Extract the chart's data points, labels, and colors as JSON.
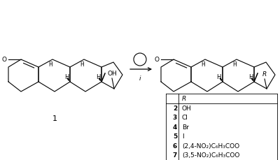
{
  "bg_color": "#ffffff",
  "fig_width": 4.0,
  "fig_height": 2.3,
  "dpi": 100,
  "table_header": "R",
  "table_rows": [
    [
      "2",
      "OH"
    ],
    [
      "3",
      "Cl"
    ],
    [
      "4",
      "Br"
    ],
    [
      "5",
      "I"
    ],
    [
      "6",
      "(2,4-NO₂)C₆H₃COO"
    ],
    [
      "7",
      "(3,5-NO₂)C₆H₃COO"
    ]
  ],
  "font_size_table": 6.5,
  "font_size_label": 8,
  "font_size_atom": 6.0,
  "lw": 0.8
}
